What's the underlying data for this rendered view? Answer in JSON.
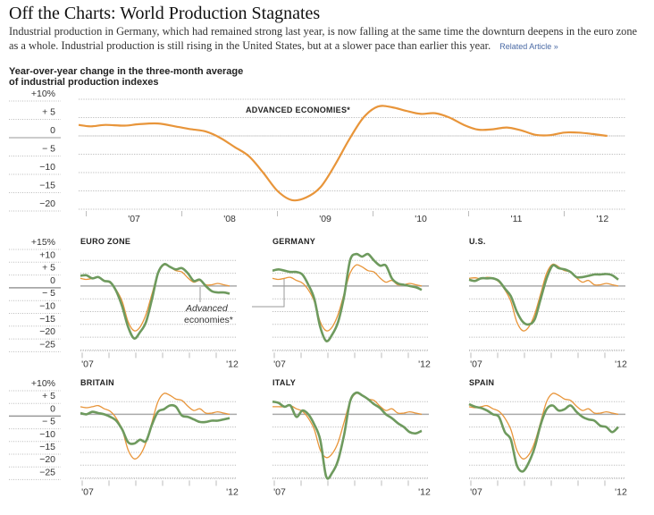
{
  "header": {
    "title": "Off the Charts: World Production Stagnates",
    "dek": "Industrial production in Germany, which had remained strong last year, is now falling at the same time the downturn deepens in the euro zone as a whole. Industrial production is still rising in the United States, but at a slower pace than earlier this year.",
    "related_link": "Related Article »",
    "subhead_line1": "Year-over-year change in the three-month average",
    "subhead_line2": "of industrial production indexes"
  },
  "colors": {
    "advanced": "#e8953a",
    "country": "#6e9a5e",
    "grid": "#bbbbbb",
    "zero": "#aaaaaa"
  },
  "chart_data": [
    {
      "type": "line",
      "title": "ADVANCED ECONOMIES*",
      "ylabel": "Year-over-year change (%)",
      "ylim": [
        -20,
        10
      ],
      "yticks": [
        10,
        5,
        0,
        -5,
        -10,
        -15,
        -20
      ],
      "ytick_labels": [
        "+10%",
        "+ 5",
        "0",
        "− 5",
        "−10",
        "−15",
        "−20"
      ],
      "xlim": [
        2006.92,
        2012.64
      ],
      "xticks": [
        2007.5,
        2008.5,
        2009.5,
        2010.5,
        2011.5,
        2012.4
      ],
      "xtick_labels": [
        "'07",
        "'08",
        "'09",
        "'10",
        "'11",
        "'12"
      ],
      "grid": true,
      "series": [
        {
          "name": "Advanced economies",
          "x": [
            2006.92,
            2007.05,
            2007.2,
            2007.4,
            2007.55,
            2007.75,
            2007.95,
            2008.1,
            2008.25,
            2008.4,
            2008.55,
            2008.7,
            2008.85,
            2009.0,
            2009.15,
            2009.3,
            2009.45,
            2009.6,
            2009.75,
            2009.9,
            2010.05,
            2010.2,
            2010.35,
            2010.5,
            2010.65,
            2010.8,
            2010.95,
            2011.1,
            2011.25,
            2011.4,
            2011.55,
            2011.7,
            2011.85,
            2012.0,
            2012.15,
            2012.3,
            2012.45
          ],
          "values": [
            3,
            2.6,
            3,
            2.8,
            3.2,
            3.4,
            2.5,
            1.8,
            1.2,
            -0.5,
            -3,
            -5.5,
            -10,
            -15,
            -17.5,
            -16.8,
            -14,
            -8,
            -1,
            5,
            8,
            7.8,
            6.8,
            6,
            6.2,
            5,
            3,
            1.7,
            1.8,
            2.3,
            1.5,
            0.3,
            0.2,
            0.9,
            0.9,
            0.5,
            0
          ]
        }
      ]
    },
    {
      "type": "line",
      "title": "EURO ZONE",
      "ylim": [
        -25,
        15
      ],
      "ytick_labels": [
        "+15%",
        "+10",
        "+ 5",
        "0",
        "− 5",
        "−10",
        "−15",
        "−20",
        "−25"
      ],
      "xtick_labels": [
        "'07",
        "'12"
      ],
      "annotation": "Advanced economies*",
      "series": [
        {
          "name": "Euro zone",
          "values": [
            4,
            4.2,
            3,
            3.5,
            2,
            1.5,
            -2,
            -8,
            -16,
            -20.5,
            -18,
            -14,
            -5,
            5,
            8.5,
            7.5,
            6.5,
            7,
            5,
            2,
            2.5,
            0,
            -2,
            -2.5,
            -2.5,
            -3
          ]
        },
        {
          "name": "Advanced economies",
          "values": [
            3,
            2.6,
            3,
            3.4,
            2.2,
            1.2,
            -1.5,
            -6,
            -14,
            -17.5,
            -16,
            -11,
            -3,
            5,
            8.2,
            7.5,
            6,
            5.5,
            3.2,
            1.5,
            2.2,
            0.5,
            0.5,
            1,
            0.5,
            0
          ]
        }
      ]
    },
    {
      "type": "line",
      "title": "GERMANY",
      "ylim": [
        -25,
        15
      ],
      "xtick_labels": [
        "'07",
        "'12"
      ],
      "series": [
        {
          "name": "Germany",
          "values": [
            6,
            6.5,
            6,
            5.5,
            5.5,
            4.5,
            0.5,
            -5,
            -16,
            -21.5,
            -19,
            -14,
            -4,
            10,
            12.5,
            11.5,
            12.5,
            10,
            8,
            8,
            3,
            1,
            0.5,
            0,
            -0.5,
            -1.5
          ]
        },
        {
          "name": "Advanced economies",
          "values": [
            3,
            2.6,
            3,
            3.4,
            2.2,
            1.2,
            -1.5,
            -6,
            -14,
            -17.5,
            -16,
            -11,
            -3,
            5,
            8.2,
            7.5,
            6,
            5.5,
            3.2,
            1.5,
            2.2,
            0.5,
            0.5,
            1,
            0.5,
            0
          ]
        }
      ]
    },
    {
      "type": "line",
      "title": "U.S.",
      "ylim": [
        -25,
        15
      ],
      "xtick_labels": [
        "'07",
        "'12"
      ],
      "series": [
        {
          "name": "U.S.",
          "values": [
            2.5,
            2,
            3,
            3,
            3,
            2,
            -1,
            -4,
            -10,
            -14,
            -15,
            -13,
            -5,
            3,
            8,
            7,
            6.5,
            5.5,
            3.5,
            3.5,
            4,
            4.5,
            4.5,
            4.7,
            4.2,
            2.5
          ]
        },
        {
          "name": "Advanced economies",
          "values": [
            3,
            3.2,
            2.8,
            3.4,
            3,
            1.6,
            -1.5,
            -6,
            -14,
            -17.5,
            -16,
            -11,
            -3,
            5,
            8.5,
            7.5,
            6,
            5.5,
            3.2,
            1.5,
            2.2,
            0.5,
            0.5,
            1,
            0.5,
            0
          ]
        }
      ]
    },
    {
      "type": "line",
      "title": "BRITAIN",
      "ylim": [
        -25,
        10
      ],
      "ytick_labels": [
        "+10%",
        "+ 5",
        "0",
        "− 5",
        "−10",
        "−15",
        "−20",
        "−25"
      ],
      "xtick_labels": [
        "'07",
        "'12"
      ],
      "series": [
        {
          "name": "Britain",
          "values": [
            0.5,
            0,
            1,
            0.5,
            0,
            -1,
            -2.5,
            -6,
            -11,
            -11.5,
            -10,
            -10.5,
            -4,
            1,
            2,
            3.5,
            3,
            -0.5,
            -1,
            -2,
            -3,
            -3,
            -2.5,
            -2.5,
            -2,
            -1.5
          ]
        },
        {
          "name": "Advanced economies",
          "values": [
            3,
            2.6,
            3,
            3.4,
            2.2,
            1.2,
            -1.5,
            -6,
            -14,
            -17.5,
            -16,
            -11,
            -3,
            5,
            8.2,
            7.5,
            6,
            5.5,
            3.2,
            1.5,
            2.2,
            0.5,
            0.5,
            1,
            0.5,
            0
          ]
        }
      ]
    },
    {
      "type": "line",
      "title": "ITALY",
      "ylim": [
        -25,
        10
      ],
      "xtick_labels": [
        "'07",
        "'12"
      ],
      "series": [
        {
          "name": "Italy",
          "values": [
            5,
            4.5,
            3,
            3.5,
            -1,
            1.5,
            0,
            -4,
            -10,
            -24.5,
            -23,
            -18,
            -8,
            5,
            8.5,
            7.5,
            6,
            4,
            2.5,
            0,
            -1.5,
            -3.5,
            -5,
            -7,
            -7.5,
            -6.5
          ]
        },
        {
          "name": "Advanced economies",
          "values": [
            3,
            3,
            3,
            3.4,
            2.2,
            1.2,
            -1.5,
            -6,
            -14,
            -17,
            -15.5,
            -11,
            -3,
            5,
            8.2,
            7.5,
            6,
            5.5,
            3.2,
            1.5,
            2.2,
            0.5,
            0.5,
            1,
            0.5,
            0
          ]
        }
      ]
    },
    {
      "type": "line",
      "title": "SPAIN",
      "ylim": [
        -25,
        10
      ],
      "xtick_labels": [
        "'07",
        "'12"
      ],
      "series": [
        {
          "name": "Spain",
          "values": [
            4,
            3,
            2.5,
            1.5,
            0,
            -1,
            -7,
            -10,
            -20,
            -22.5,
            -19,
            -13,
            -4,
            2,
            3.5,
            1.5,
            2,
            3.5,
            1,
            -1,
            -2,
            -2.5,
            -4.5,
            -5,
            -7,
            -5
          ]
        },
        {
          "name": "Advanced economies",
          "values": [
            3,
            2.6,
            3,
            3.4,
            2.2,
            1.2,
            -1.5,
            -6,
            -14,
            -17.5,
            -16,
            -11,
            -3,
            5,
            8.2,
            7.5,
            6,
            5.5,
            3.2,
            1.5,
            2.2,
            0.5,
            0.5,
            1,
            0.5,
            0
          ]
        }
      ]
    }
  ]
}
